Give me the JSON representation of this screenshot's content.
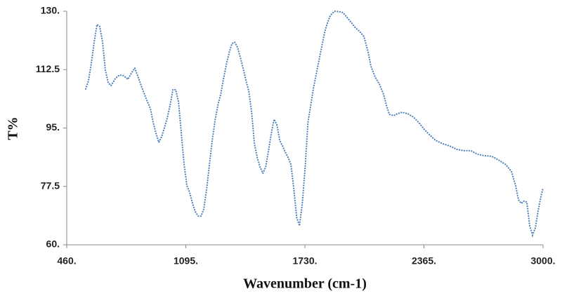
{
  "chart_data": {
    "type": "line",
    "xlabel": "Wavenumber (cm-1)",
    "ylabel": "T%",
    "color": "#4f81bd",
    "x": [
      561,
      576,
      591,
      606,
      621,
      636,
      651,
      666,
      681,
      696,
      719,
      741,
      763,
      786,
      808,
      823,
      838,
      861,
      883,
      906,
      921,
      936,
      951,
      966,
      981,
      996,
      1011,
      1026,
      1041,
      1056,
      1071,
      1086,
      1101,
      1116,
      1131,
      1146,
      1161,
      1176,
      1191,
      1206,
      1221,
      1236,
      1251,
      1266,
      1281,
      1296,
      1311,
      1326,
      1341,
      1356,
      1371,
      1386,
      1401,
      1416,
      1431,
      1446,
      1461,
      1476,
      1491,
      1506,
      1521,
      1536,
      1551,
      1566,
      1581,
      1596,
      1611,
      1626,
      1641,
      1656,
      1671,
      1686,
      1701,
      1716,
      1731,
      1746,
      1761,
      1776,
      1791,
      1806,
      1821,
      1836,
      1851,
      1865,
      1888,
      1910,
      1933,
      1955,
      1978,
      2000,
      2023,
      2045,
      2068,
      2083,
      2105,
      2128,
      2150,
      2165,
      2180,
      2203,
      2225,
      2248,
      2278,
      2308,
      2338,
      2368,
      2398,
      2427,
      2465,
      2502,
      2540,
      2577,
      2615,
      2652,
      2689,
      2727,
      2764,
      2802,
      2832,
      2854,
      2869,
      2884,
      2899,
      2914,
      2929,
      2944,
      2959,
      2974,
      2989,
      3000
    ],
    "values": [
      106.7,
      109.2,
      114.4,
      120.7,
      126.0,
      125.4,
      120.7,
      112.3,
      108.6,
      107.7,
      109.8,
      110.9,
      110.7,
      109.6,
      111.7,
      113.0,
      110.7,
      107.1,
      103.9,
      100.8,
      96.6,
      93.4,
      90.7,
      92.4,
      95.1,
      98.0,
      101.8,
      106.5,
      106.5,
      102.9,
      93.4,
      84.0,
      77.7,
      75.6,
      72.4,
      69.9,
      68.6,
      68.6,
      70.7,
      76.6,
      84.0,
      91.3,
      97.2,
      101.8,
      105.0,
      109.8,
      114.0,
      117.6,
      120.3,
      120.7,
      119.1,
      116.1,
      112.8,
      109.2,
      106.0,
      99.7,
      90.3,
      86.1,
      83.3,
      81.4,
      83.3,
      88.2,
      93.4,
      97.6,
      95.9,
      91.3,
      89.6,
      87.7,
      86.1,
      84.0,
      76.6,
      68.2,
      65.7,
      72.4,
      82.9,
      96.6,
      101.8,
      107.1,
      111.3,
      115.5,
      119.7,
      123.9,
      126.6,
      128.7,
      130.0,
      129.9,
      129.6,
      128.1,
      126.6,
      125.0,
      123.9,
      122.4,
      117.6,
      113.4,
      110.2,
      108.1,
      105.0,
      101.8,
      99.1,
      98.7,
      99.3,
      99.7,
      99.3,
      98.3,
      96.6,
      94.5,
      92.8,
      91.3,
      90.3,
      89.6,
      88.6,
      88.2,
      88.2,
      87.1,
      86.7,
      86.5,
      85.4,
      84.0,
      81.9,
      77.7,
      73.5,
      72.4,
      73.1,
      72.8,
      65.7,
      62.9,
      65.1,
      70.3,
      74.5,
      77.0
    ],
    "xlim": [
      460,
      3000
    ],
    "xticks": [
      {
        "value": 460,
        "label": "460."
      },
      {
        "value": 1095,
        "label": "1095."
      },
      {
        "value": 1730,
        "label": "1730."
      },
      {
        "value": 2365,
        "label": "2365."
      },
      {
        "value": 3000,
        "label": "3000."
      }
    ],
    "ylim": [
      60,
      130
    ],
    "yticks": [
      {
        "value": 60,
        "label": "60."
      },
      {
        "value": 77.5,
        "label": "77.5"
      },
      {
        "value": 95,
        "label": "95."
      },
      {
        "value": 112.5,
        "label": "112.5"
      },
      {
        "value": 130,
        "label": "130."
      }
    ],
    "grid": false
  }
}
